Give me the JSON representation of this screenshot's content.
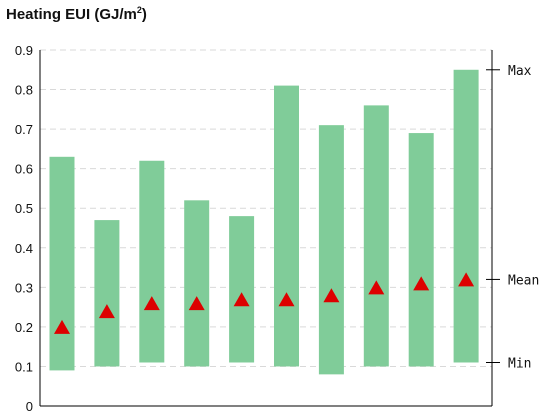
{
  "chart_data": {
    "type": "bar",
    "title": "Heating EUI (GJ/m",
    "title_superscript": "2",
    "title_suffix": ")",
    "ylim": [
      0,
      0.9
    ],
    "yticks": [
      "0",
      "0.1",
      "0.2",
      "0.3",
      "0.4",
      "0.5",
      "0.6",
      "0.7",
      "0.8",
      "0.9"
    ],
    "grid": true,
    "categories": [
      "",
      "",
      "",
      "",
      "",
      "",
      "",
      "",
      "",
      ""
    ],
    "series": [
      {
        "name": "Min",
        "values": [
          0.09,
          0.1,
          0.11,
          0.1,
          0.11,
          0.1,
          0.08,
          0.1,
          0.1,
          0.11
        ]
      },
      {
        "name": "Max",
        "values": [
          0.63,
          0.47,
          0.62,
          0.52,
          0.48,
          0.81,
          0.71,
          0.76,
          0.69,
          0.85
        ]
      },
      {
        "name": "Mean",
        "values": [
          0.2,
          0.24,
          0.26,
          0.26,
          0.27,
          0.27,
          0.28,
          0.3,
          0.31,
          0.32
        ]
      }
    ],
    "legend": {
      "placement": "right",
      "items": [
        "Max",
        "Mean",
        "Min"
      ]
    },
    "colors": {
      "range_bar": "#80cc99",
      "mean_marker": "#dd0000",
      "grid": "#d9d9d9",
      "axis": "#000000"
    }
  }
}
